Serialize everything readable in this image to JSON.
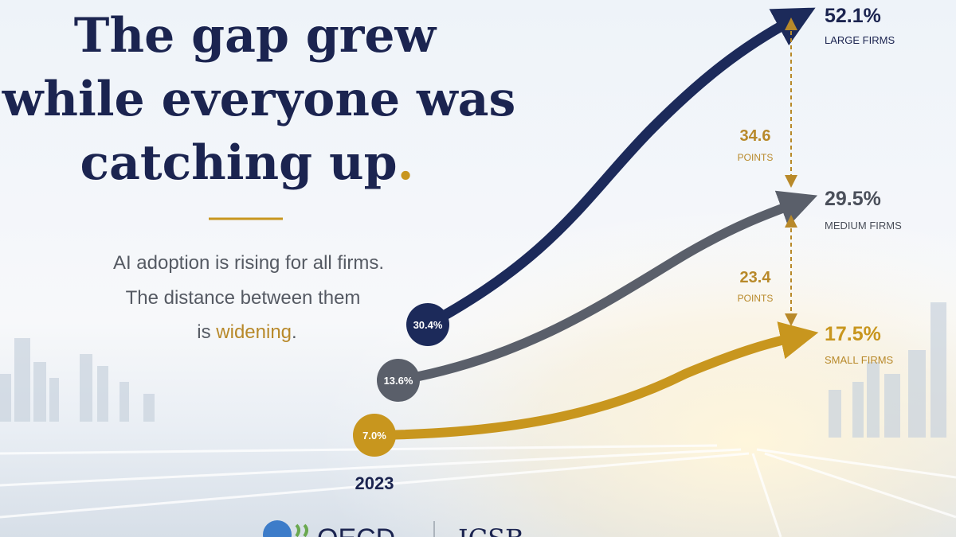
{
  "headline": {
    "lines": [
      "The gap grew",
      "while everyone was",
      "catching up"
    ],
    "period": "."
  },
  "subtitle": {
    "line1": "AI adoption is rising for all firms.",
    "line2": "The distance between them",
    "line3_start": "is",
    "highlight": "widening",
    "line3_end": "."
  },
  "year": "2023",
  "firms": [
    {
      "start": "30.4%",
      "end": "52.1%",
      "label": "LARGE FIRMS"
    },
    {
      "start": "13.6%",
      "end": "29.5%",
      "label": "MEDIUM FIRMS"
    },
    {
      "start": "7.0%",
      "end": "17.5%",
      "label": "SMALL FIRMS"
    }
  ],
  "gaps": [
    {
      "value": "34.6",
      "unit": "POINTS"
    },
    {
      "value": "23.4",
      "unit": "POINTS"
    }
  ],
  "logos": [
    "OECD",
    "ICSB"
  ]
}
